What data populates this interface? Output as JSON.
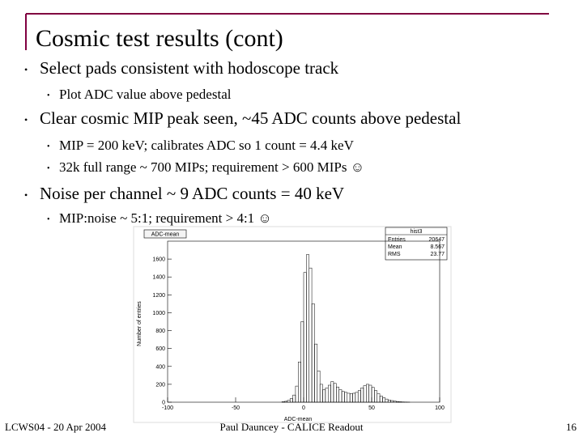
{
  "title": "Cosmic test results (cont)",
  "bullets": [
    {
      "text": "Select pads consistent with hodoscope track",
      "sub": [
        "Plot ADC value above pedestal"
      ]
    },
    {
      "text": "Clear cosmic MIP peak seen, ~45 ADC counts above pedestal",
      "sub": [
        "MIP = 200 keV; calibrates ADC so 1 count = 4.4 keV",
        "32k full range ~ 700 MIPs; requirement > 600 MIPs ☺"
      ]
    },
    {
      "text": "Noise per channel ~ 9 ADC counts = 40 keV",
      "sub": [
        "MIP:noise ~ 5:1; requirement > 4:1 ☺"
      ]
    }
  ],
  "footer": {
    "left": "LCWS04 - 20 Apr 2004",
    "center": "Paul Dauncey - CALICE Readout",
    "page": "16"
  },
  "plot": {
    "type": "histogram",
    "title": "ADC-mean",
    "x_label": "ADC-mean",
    "y_label": "Number of entries",
    "stats_title": "hist3",
    "stats": [
      {
        "label": "Entries",
        "value": 20647
      },
      {
        "label": "Mean",
        "value": 8.567
      },
      {
        "label": "RMS",
        "value": 23.77
      }
    ],
    "bins": [
      -20,
      -18,
      -16,
      -14,
      -12,
      -10,
      -8,
      -6,
      -4,
      -2,
      0,
      2,
      4,
      6,
      8,
      10,
      12,
      14,
      16,
      18,
      20,
      22,
      24,
      26,
      28,
      30,
      32,
      34,
      36,
      38,
      40,
      42,
      44,
      46,
      48,
      50,
      52,
      54,
      56,
      58,
      60,
      62,
      64,
      66,
      68,
      70,
      72,
      74,
      76,
      78,
      80
    ],
    "counts": [
      0,
      0,
      5,
      10,
      20,
      40,
      80,
      180,
      450,
      900,
      1450,
      1650,
      1500,
      1100,
      650,
      350,
      200,
      140,
      160,
      190,
      230,
      210,
      170,
      140,
      120,
      110,
      100,
      95,
      100,
      110,
      130,
      160,
      185,
      200,
      190,
      165,
      130,
      95,
      70,
      50,
      35,
      25,
      18,
      12,
      8,
      5,
      3,
      2,
      1,
      0
    ],
    "color": "#000000",
    "xlim": [
      -100,
      100
    ],
    "xticks": [
      -100,
      -50,
      0,
      50,
      100
    ],
    "ylim": [
      0,
      1800
    ],
    "yticks": [
      0,
      200,
      400,
      600,
      800,
      1000,
      1200,
      1400,
      1600
    ]
  }
}
